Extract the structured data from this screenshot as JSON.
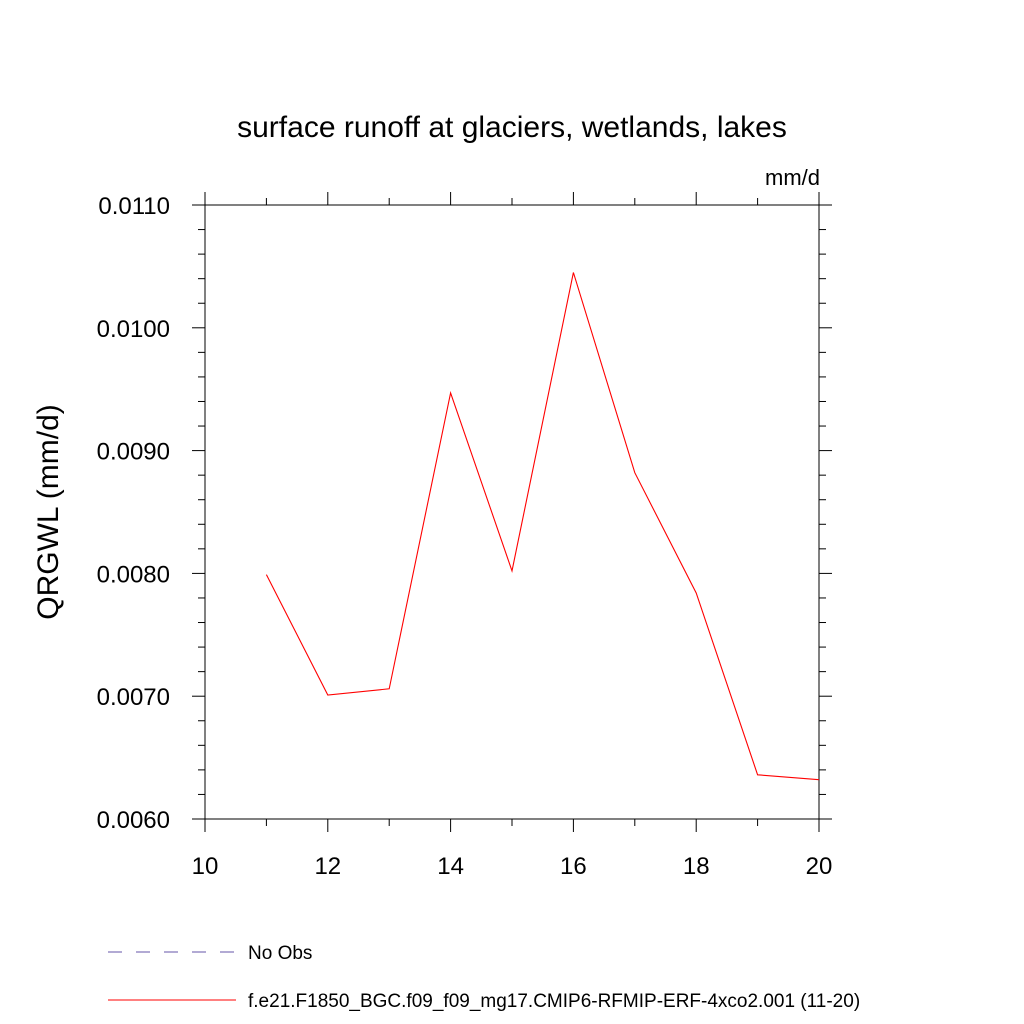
{
  "chart_data": {
    "type": "line",
    "title": "surface runoff at glaciers, wetlands, lakes",
    "units_label": "mm/d",
    "ylabel": "QRGWL  (mm/d)",
    "xlabel": "",
    "xlim": [
      10,
      20
    ],
    "ylim": [
      0.006,
      0.011
    ],
    "x_ticks": [
      "10",
      "12",
      "14",
      "16",
      "18",
      "20"
    ],
    "y_ticks": [
      "0.0060",
      "0.0070",
      "0.0080",
      "0.0090",
      "0.0100",
      "0.0110"
    ],
    "grid": false,
    "legend_position": "bottom-left",
    "series": [
      {
        "name": "f.e21.F1850_BGC.f09_f09_mg17.CMIP6-RFMIP-ERF-4xco2.001 (11-20)",
        "color": "#ff0000",
        "style": "solid",
        "x": [
          11,
          12,
          13,
          14,
          15,
          16,
          17,
          18,
          19,
          20
        ],
        "y": [
          0.00799,
          0.00701,
          0.00706,
          0.00947,
          0.00802,
          0.01045,
          0.00882,
          0.00784,
          0.00636,
          0.00632
        ]
      }
    ],
    "legend": [
      {
        "label": "No Obs",
        "color": "#6655aa",
        "style": "dashed"
      },
      {
        "label": "f.e21.F1850_BGC.f09_f09_mg17.CMIP6-RFMIP-ERF-4xco2.001 (11-20)",
        "color": "#ff0000",
        "style": "solid"
      }
    ]
  }
}
